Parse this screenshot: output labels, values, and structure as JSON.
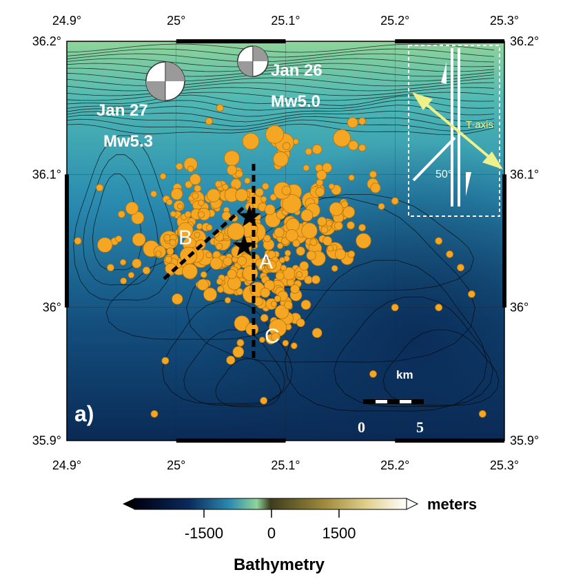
{
  "map": {
    "lon_ticks": [
      "24.9°",
      "25°",
      "25.1°",
      "25.2°",
      "25.3°"
    ],
    "lat_ticks": [
      "36.2°",
      "36.1°",
      "36°",
      "35.9°"
    ],
    "lon_range": [
      24.9,
      25.3
    ],
    "lat_range": [
      35.9,
      36.2
    ],
    "panel_label": "a)",
    "bathymetry_colors": [
      "#0a2a55",
      "#14507f",
      "#2a8bb0",
      "#4fb8b4",
      "#8fd49a"
    ]
  },
  "events": [
    {
      "id": "jan27",
      "date": "Jan 27",
      "magnitude": "Mw5.3",
      "lon": 24.99,
      "lat": 36.17
    },
    {
      "id": "jan26",
      "date": "Jan 26",
      "magnitude": "Mw5.0",
      "lon": 25.07,
      "lat": 36.185
    }
  ],
  "epicenters": [
    {
      "lon": 25.067,
      "lat": 36.068
    },
    {
      "lon": 25.062,
      "lat": 36.046
    }
  ],
  "profiles": [
    {
      "label": "A",
      "lon": 25.075,
      "lat": 36.037
    },
    {
      "label": "B",
      "lon": 25.01,
      "lat": 36.058
    },
    {
      "label": "C",
      "lon": 25.085,
      "lat": 35.98
    }
  ],
  "inset": {
    "t_axis_label": "T-axis",
    "angle_label": "50°"
  },
  "scale_bar": {
    "unit": "km",
    "min_label": "0",
    "max_label": "5"
  },
  "colorbar": {
    "ticks": [
      "-1500",
      "0",
      "1500"
    ],
    "unit": "meters",
    "title": "Bathymetry"
  }
}
